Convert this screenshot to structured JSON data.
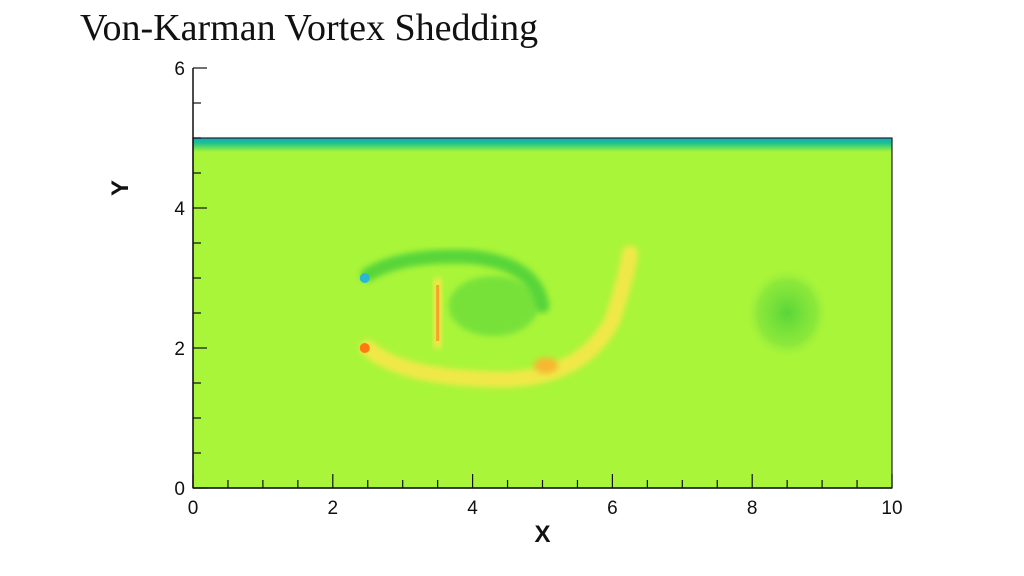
{
  "chart_data": {
    "type": "heatmap",
    "title": "Von-Karman Vortex Shedding",
    "xlabel": "X",
    "ylabel": "Y",
    "xlim": [
      0,
      10
    ],
    "ylim": [
      0,
      6
    ],
    "x_ticks": [
      0,
      2,
      4,
      6,
      8,
      10
    ],
    "y_ticks": [
      0,
      2,
      4,
      6
    ],
    "domain": {
      "x": [
        0,
        10
      ],
      "y": [
        0,
        5
      ]
    },
    "grid": false,
    "legend": "none",
    "colors": {
      "background_field": "#a9f53a",
      "top_wall": "#19c28c",
      "low_contour": "#4fd23a",
      "high_contour": "#f4e84a",
      "peak_high": "#ff7a12",
      "peak_low": "#2ab7d6"
    },
    "features": [
      {
        "name": "bluff body inlet corner upper",
        "x": 2.5,
        "y": 3.0,
        "level": "low"
      },
      {
        "name": "bluff body inlet corner lower",
        "x": 2.5,
        "y": 2.0,
        "level": "high"
      },
      {
        "name": "separating shear layer upper",
        "x_range": [
          2.5,
          5.0
        ],
        "y": 3.1,
        "level": "low"
      },
      {
        "name": "separating shear layer lower",
        "x_range": [
          2.5,
          5.5
        ],
        "y": 1.8,
        "level": "high"
      },
      {
        "name": "rear plate",
        "x": 3.5,
        "y_range": [
          2.0,
          3.0
        ],
        "level": "high"
      },
      {
        "name": "shed vortex tail",
        "x": 6.0,
        "y": 2.5,
        "level": "high"
      },
      {
        "name": "downstream vortex core",
        "x": 8.5,
        "y": 2.5,
        "level": "low"
      }
    ]
  }
}
